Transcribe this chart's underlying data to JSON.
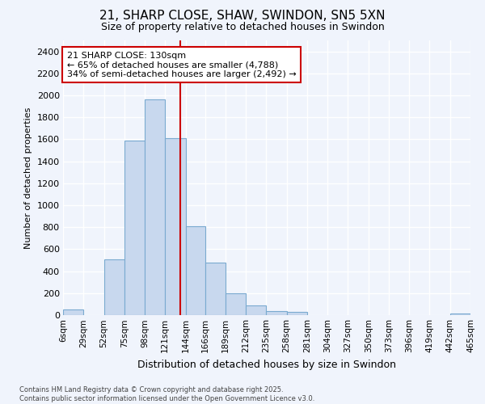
{
  "title": "21, SHARP CLOSE, SHAW, SWINDON, SN5 5XN",
  "subtitle": "Size of property relative to detached houses in Swindon",
  "xlabel": "Distribution of detached houses by size in Swindon",
  "ylabel": "Number of detached properties",
  "footer": "Contains HM Land Registry data © Crown copyright and database right 2025.\nContains public sector information licensed under the Open Government Licence v3.0.",
  "bar_color": "#c8d8ee",
  "bar_edge_color": "#7aaad0",
  "background_color": "#f0f4fc",
  "plot_bg_color": "#f0f4fc",
  "grid_color": "#ffffff",
  "property_line_color": "#cc0000",
  "property_line_x": 130,
  "annotation_text": "21 SHARP CLOSE: 130sqm\n← 65% of detached houses are smaller (4,788)\n34% of semi-detached houses are larger (2,492) →",
  "annotation_box_edgecolor": "#cc0000",
  "bin_edges": [
    6,
    29,
    52,
    75,
    98,
    121,
    144,
    166,
    189,
    212,
    235,
    258,
    281,
    304,
    327,
    350,
    373,
    396,
    419,
    442,
    465
  ],
  "bin_labels": [
    "6sqm",
    "29sqm",
    "52sqm",
    "75sqm",
    "98sqm",
    "121sqm",
    "144sqm",
    "166sqm",
    "189sqm",
    "212sqm",
    "235sqm",
    "258sqm",
    "281sqm",
    "304sqm",
    "327sqm",
    "350sqm",
    "373sqm",
    "396sqm",
    "419sqm",
    "442sqm",
    "465sqm"
  ],
  "values": [
    50,
    0,
    510,
    1590,
    1960,
    1610,
    810,
    480,
    200,
    90,
    35,
    30,
    0,
    0,
    0,
    0,
    0,
    0,
    0,
    15,
    0
  ],
  "ylim": [
    0,
    2500
  ],
  "yticks": [
    0,
    200,
    400,
    600,
    800,
    1000,
    1200,
    1400,
    1600,
    1800,
    2000,
    2200,
    2400
  ]
}
